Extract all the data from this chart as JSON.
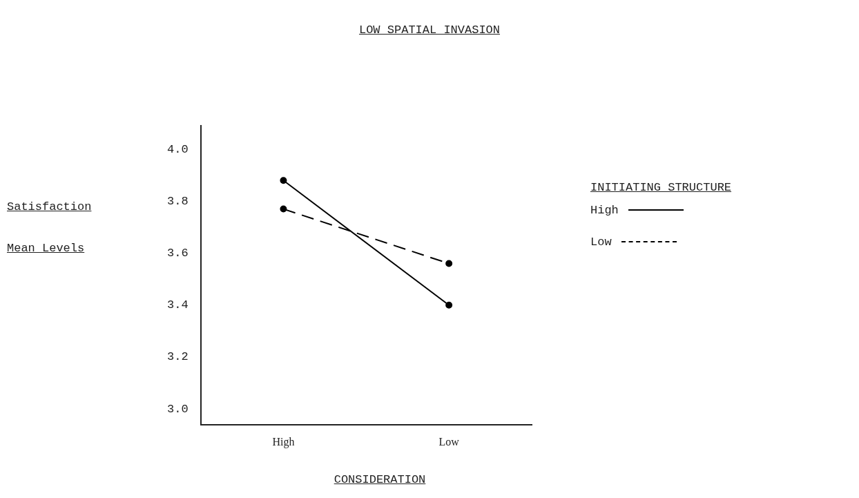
{
  "chart_data": {
    "type": "line",
    "title": "LOW SPATIAL INVASION",
    "xlabel": "CONSIDERATION",
    "ylabel": "Satisfaction Mean Levels",
    "legend_title": "INITIATING STRUCTURE",
    "categories": [
      "High",
      "Low"
    ],
    "series": [
      {
        "name": "High",
        "color": "#000000",
        "values": [
          3.88,
          3.4
        ],
        "line_style": "solid"
      },
      {
        "name": "Low",
        "color": "#000000",
        "values": [
          3.77,
          3.56
        ],
        "line_style": "dashed"
      }
    ],
    "ylim": [
      2.94,
      4.09
    ],
    "yticks": [
      {
        "value": 3.0,
        "label": "3.0"
      },
      {
        "value": 3.2,
        "label": "3.2"
      },
      {
        "value": 3.4,
        "label": "3.4"
      },
      {
        "value": 3.6,
        "label": "3.6"
      },
      {
        "value": 3.8,
        "label": "3.8"
      },
      {
        "value": 4.0,
        "label": "4.0"
      }
    ],
    "grid": false,
    "legend": "right",
    "marker": "circle"
  }
}
